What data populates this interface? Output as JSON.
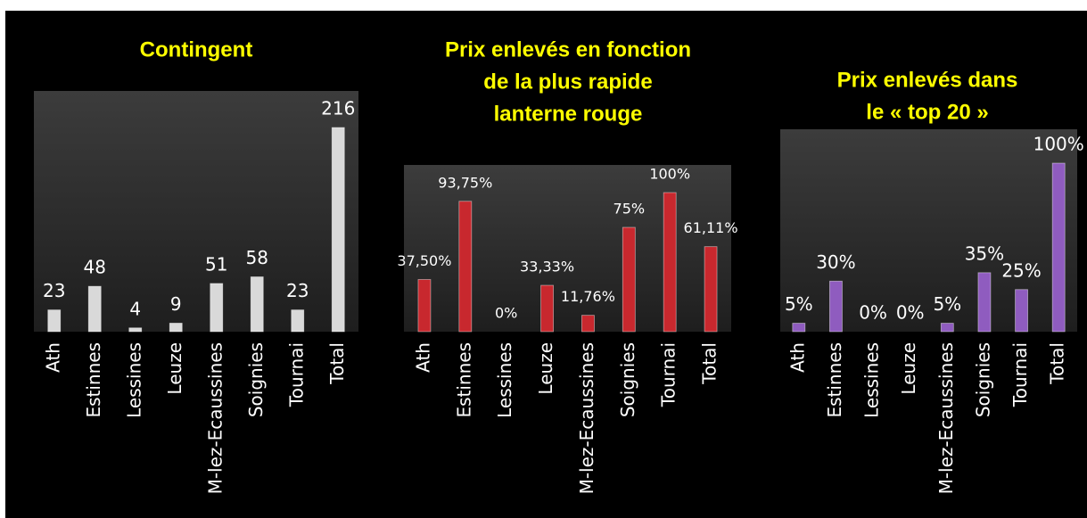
{
  "chart_data": [
    {
      "type": "bar",
      "title": [
        "Contingent"
      ],
      "categories": [
        "Ath",
        "Estinnes",
        "Lessines",
        "Leuze",
        "M-lez-Ecaussines",
        "Soignies",
        "Tournai",
        "Total"
      ],
      "values": [
        23,
        48,
        4,
        9,
        51,
        58,
        23,
        216
      ],
      "color": "#d9d9d9"
    },
    {
      "type": "bar",
      "title": [
        "Prix enlevés en fonction",
        "de la plus rapide",
        "lanterne rouge"
      ],
      "categories": [
        "Ath",
        "Estinnes",
        "Lessines",
        "Leuze",
        "M-lez-Ecaussines",
        "Soignies",
        "Tournai",
        "Total"
      ],
      "values": [
        37.5,
        93.75,
        0,
        33.33,
        11.76,
        75,
        100,
        61.11
      ],
      "value_labels": [
        "37,50%",
        "93,75%",
        "0%",
        "33,33%",
        "11,76%",
        "75%",
        "100%",
        "61,11%"
      ],
      "color": "#c8282e"
    },
    {
      "type": "bar",
      "title": [
        "Prix enlevés dans",
        "le « top 20 »"
      ],
      "categories": [
        "Ath",
        "Estinnes",
        "Lessines",
        "Leuze",
        "M-lez-Ecaussines",
        "Soignies",
        "Tournai",
        "Total"
      ],
      "values": [
        5,
        30,
        0,
        0,
        5,
        35,
        25,
        100
      ],
      "value_labels": [
        "5%",
        "30%",
        "0%",
        "0%",
        "5%",
        "35%",
        "25%",
        "100%"
      ],
      "color": "#8f5cbf"
    }
  ]
}
